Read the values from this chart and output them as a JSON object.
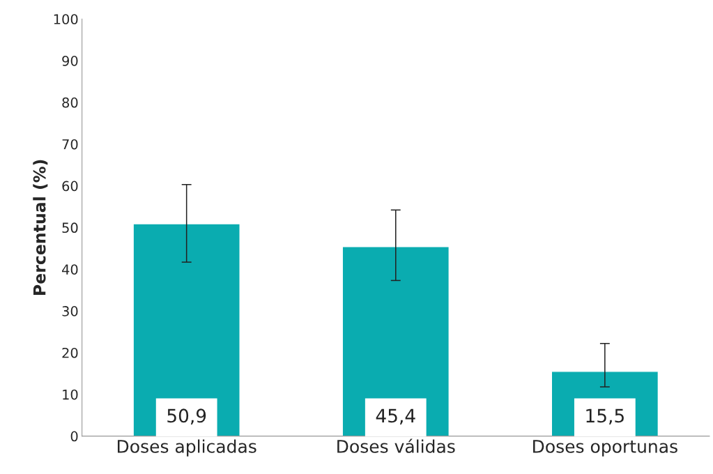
{
  "chart_data": {
    "type": "bar",
    "ylabel": "Percentual (%)",
    "categories": [
      "Doses aplicadas",
      "Doses válidas",
      "Doses oportunas"
    ],
    "values": [
      50.9,
      45.4,
      15.5
    ],
    "value_labels": [
      "50,9",
      "45,4",
      "15,5"
    ],
    "errors": [
      [
        41.7,
        60.3
      ],
      [
        37.3,
        54.2
      ],
      [
        11.8,
        22.2
      ]
    ],
    "color": "#0aacb0",
    "ylim": [
      0,
      100
    ],
    "yticks": [
      0,
      10,
      20,
      30,
      40,
      50,
      60,
      70,
      80,
      90,
      100
    ],
    "grid": false
  }
}
